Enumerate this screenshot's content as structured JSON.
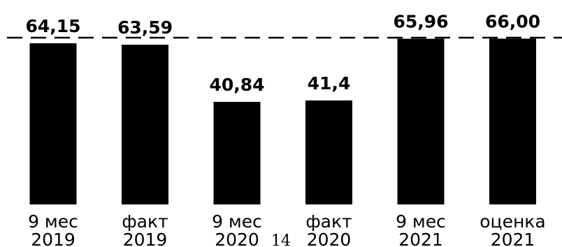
{
  "chart_data": {
    "type": "bar",
    "categories": [
      [
        "9 мес",
        "2019"
      ],
      [
        "факт",
        "2019"
      ],
      [
        "9 мес",
        "2020"
      ],
      [
        "факт",
        "2020"
      ],
      [
        "9 мес",
        "2021"
      ],
      [
        "оценка",
        "2021"
      ]
    ],
    "values": [
      64.15,
      63.59,
      40.84,
      41.4,
      65.96,
      66.0
    ],
    "value_labels": [
      "64,15",
      "63,59",
      "40,84",
      "41,4",
      "65,96",
      "66,00"
    ],
    "ylim": [
      0,
      70
    ],
    "reference_line": {
      "style": "dashed"
    },
    "bar_color": "#000000",
    "grid": false,
    "legend": "none"
  },
  "page_number": "14"
}
